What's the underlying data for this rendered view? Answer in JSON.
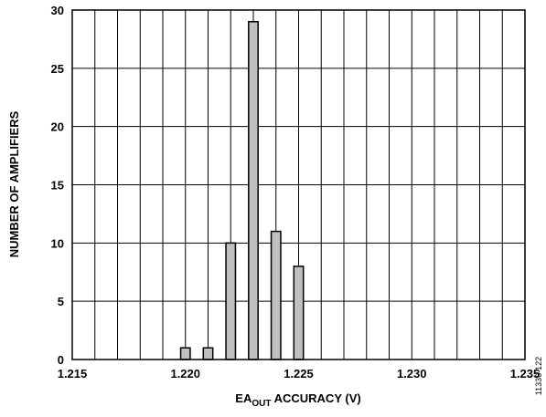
{
  "chart_data": {
    "type": "bar",
    "xlabel_main": "EA",
    "xlabel_sub": "OUT",
    "xlabel_rest": " ACCURACY (V)",
    "ylabel": "NUMBER OF AMPLIFIERS",
    "x_ticks": [
      "1.215",
      "1.220",
      "1.225",
      "1.230",
      "1.235"
    ],
    "y_ticks": [
      "0",
      "5",
      "10",
      "15",
      "20",
      "25",
      "30"
    ],
    "xlim": [
      1.215,
      1.235
    ],
    "ylim": [
      0,
      30
    ],
    "x_grid_step": 0.001,
    "y_grid_step": 5,
    "grid": true,
    "bar_color": "#c0c0c0",
    "categories": [
      "1.220",
      "1.221",
      "1.222",
      "1.223",
      "1.224",
      "1.225"
    ],
    "x": [
      1.22,
      1.221,
      1.222,
      1.223,
      1.224,
      1.225
    ],
    "values": [
      1,
      1,
      10,
      29,
      11,
      8
    ]
  },
  "figure_id": "11336-122"
}
